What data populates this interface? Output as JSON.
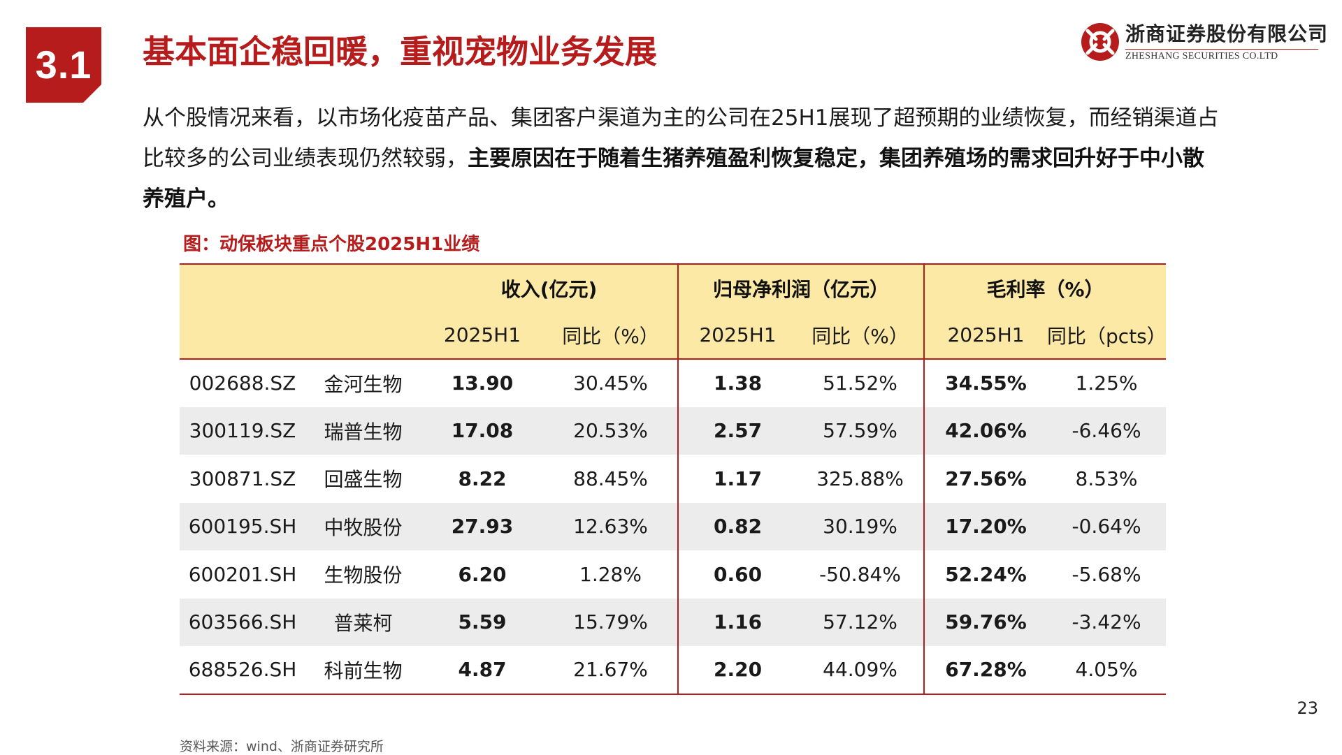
{
  "section_number": "3.1",
  "page_title": "基本面企稳回暖，重视宠物业务发展",
  "logo": {
    "cn": "浙商证券股份有限公司",
    "en": "ZHESHANG SECURITIES CO.LTD",
    "brand_color": "#b71c1c"
  },
  "intro": {
    "plain": "从个股情况来看，以市场化疫苗产品、集团客户渠道为主的公司在25H1展现了超预期的业绩恢复，而经销渠道占比较多的公司业绩表现仍然较弱，",
    "bold": "主要原因在于随着生猪养殖盈利恢复稳定，集团养殖场的需求回升好于中小散养殖户。"
  },
  "figure_caption": "图：动保板块重点个股2025H1业绩",
  "table": {
    "group_headers": [
      "收入(亿元)",
      "归母净利润（亿元）",
      "毛利率（%）"
    ],
    "sub_headers": [
      "2025H1",
      "同比（%）",
      "2025H1",
      "同比（%）",
      "2025H1",
      "同比（pcts）"
    ],
    "rows": [
      {
        "code": "002688.SZ",
        "name": "金河生物",
        "rev": "13.90",
        "rev_yoy": "30.45%",
        "np": "1.38",
        "np_yoy": "51.52%",
        "gm": "34.55%",
        "gm_yoy": "1.25%"
      },
      {
        "code": "300119.SZ",
        "name": "瑞普生物",
        "rev": "17.08",
        "rev_yoy": "20.53%",
        "np": "2.57",
        "np_yoy": "57.59%",
        "gm": "42.06%",
        "gm_yoy": "-6.46%"
      },
      {
        "code": "300871.SZ",
        "name": "回盛生物",
        "rev": "8.22",
        "rev_yoy": "88.45%",
        "np": "1.17",
        "np_yoy": "325.88%",
        "gm": "27.56%",
        "gm_yoy": "8.53%"
      },
      {
        "code": "600195.SH",
        "name": "中牧股份",
        "rev": "27.93",
        "rev_yoy": "12.63%",
        "np": "0.82",
        "np_yoy": "30.19%",
        "gm": "17.20%",
        "gm_yoy": "-0.64%"
      },
      {
        "code": "600201.SH",
        "name": "生物股份",
        "rev": "6.20",
        "rev_yoy": "1.28%",
        "np": "0.60",
        "np_yoy": "-50.84%",
        "gm": "52.24%",
        "gm_yoy": "-5.68%"
      },
      {
        "code": "603566.SH",
        "name": "普莱柯",
        "rev": "5.59",
        "rev_yoy": "15.79%",
        "np": "1.16",
        "np_yoy": "57.12%",
        "gm": "59.76%",
        "gm_yoy": "-3.42%"
      },
      {
        "code": "688526.SH",
        "name": "科前生物",
        "rev": "4.87",
        "rev_yoy": "21.67%",
        "np": "2.20",
        "np_yoy": "44.09%",
        "gm": "67.28%",
        "gm_yoy": "4.05%"
      }
    ]
  },
  "page_number": "23",
  "source_note": "资料来源：wind、浙商证券研究所"
}
